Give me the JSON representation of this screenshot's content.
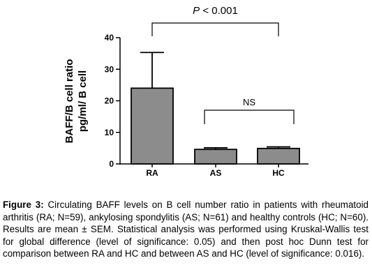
{
  "chart_data": {
    "type": "bar",
    "categories": [
      "RA",
      "AS",
      "HC"
    ],
    "values": [
      24,
      4.6,
      4.9
    ],
    "error_plus": [
      11.3,
      0.5,
      0.5
    ],
    "ylabel_line1": "BAFF/B cell ratio",
    "ylabel_line2": "pg/ml/ B cell",
    "ylim": [
      0,
      40
    ],
    "yticks": [
      "0",
      "10",
      "20",
      "30",
      "40"
    ],
    "grid": false,
    "bar_color": "#8c8c8c",
    "annotations": [
      {
        "label_prefix": "P",
        "label_rest": " < 0.001",
        "between": [
          "RA",
          "HC"
        ]
      },
      {
        "label": "NS",
        "between": [
          "AS",
          "HC"
        ]
      }
    ]
  },
  "caption": {
    "label": "Figure 3:",
    "text": " Circulating BAFF levels on B cell number ratio in patients with rheumatoid arthritis (RA; N=59), ankylosing spondylitis (AS; N=61) and healthy controls (HC; N=60). Results are mean ± SEM. Statistical analysis was performed using Kruskal-Wallis test for global difference (level of significance: 0.05) and then post hoc Dunn test for comparison between RA and HC and between AS and HC (level of significance: 0.016)."
  }
}
